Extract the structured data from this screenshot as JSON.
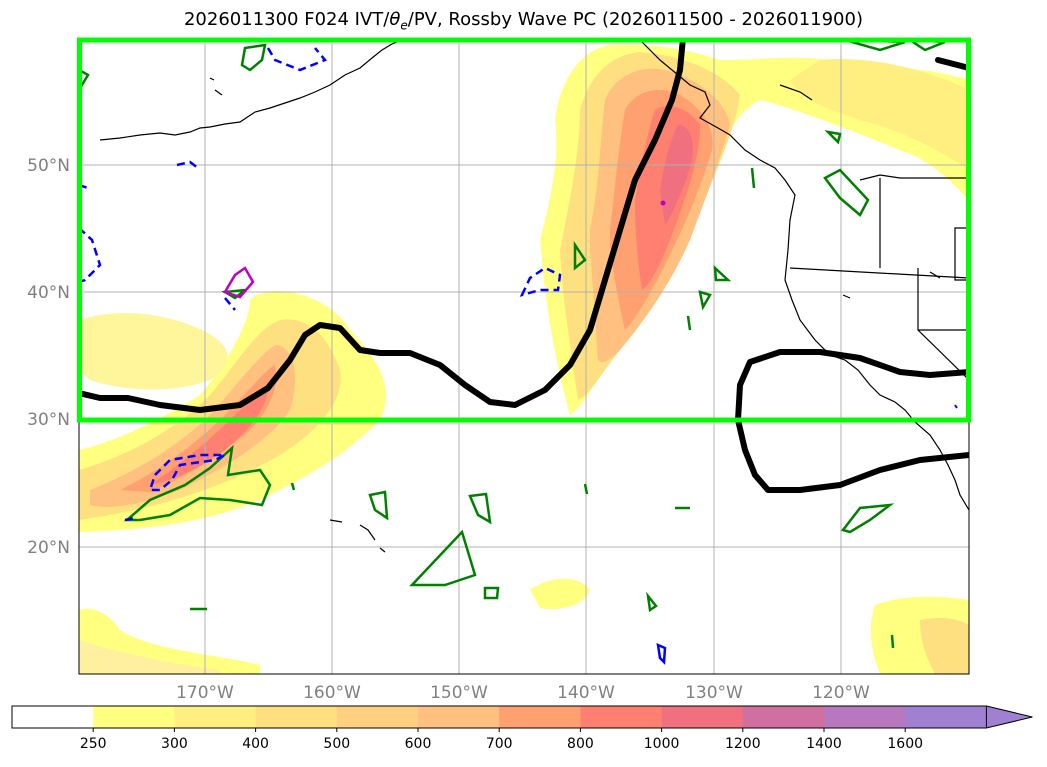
{
  "title": {
    "prefix": "2026011300 F024 IVT/",
    "theta": "θ",
    "theta_sub": "e",
    "suffix": "/PV, Rossby Wave PC (2026011500 - 2026011900)"
  },
  "map": {
    "lat_labels": [
      "50°N",
      "40°N",
      "30°N",
      "20°N"
    ],
    "lon_labels": [
      "170°W",
      "160°W",
      "150°W",
      "140°W",
      "130°W",
      "120°W"
    ]
  },
  "colorbar": {
    "labels": [
      "250",
      "300",
      "400",
      "500",
      "600",
      "700",
      "800",
      "1000",
      "1200",
      "1400",
      "1600"
    ],
    "colors": [
      "#ffffff",
      "#ffff80",
      "#ffef80",
      "#ffe080",
      "#ffd080",
      "#ffc080",
      "#ffa070",
      "#ff8070",
      "#f07080",
      "#d070a0",
      "#b878c0",
      "#a080d0"
    ]
  },
  "colors": {
    "box": "#00ff00",
    "jet": "#000000",
    "theta_contour": "#008000",
    "pv_neg": "#0000ff",
    "pv_pos": "#c000c0"
  }
}
